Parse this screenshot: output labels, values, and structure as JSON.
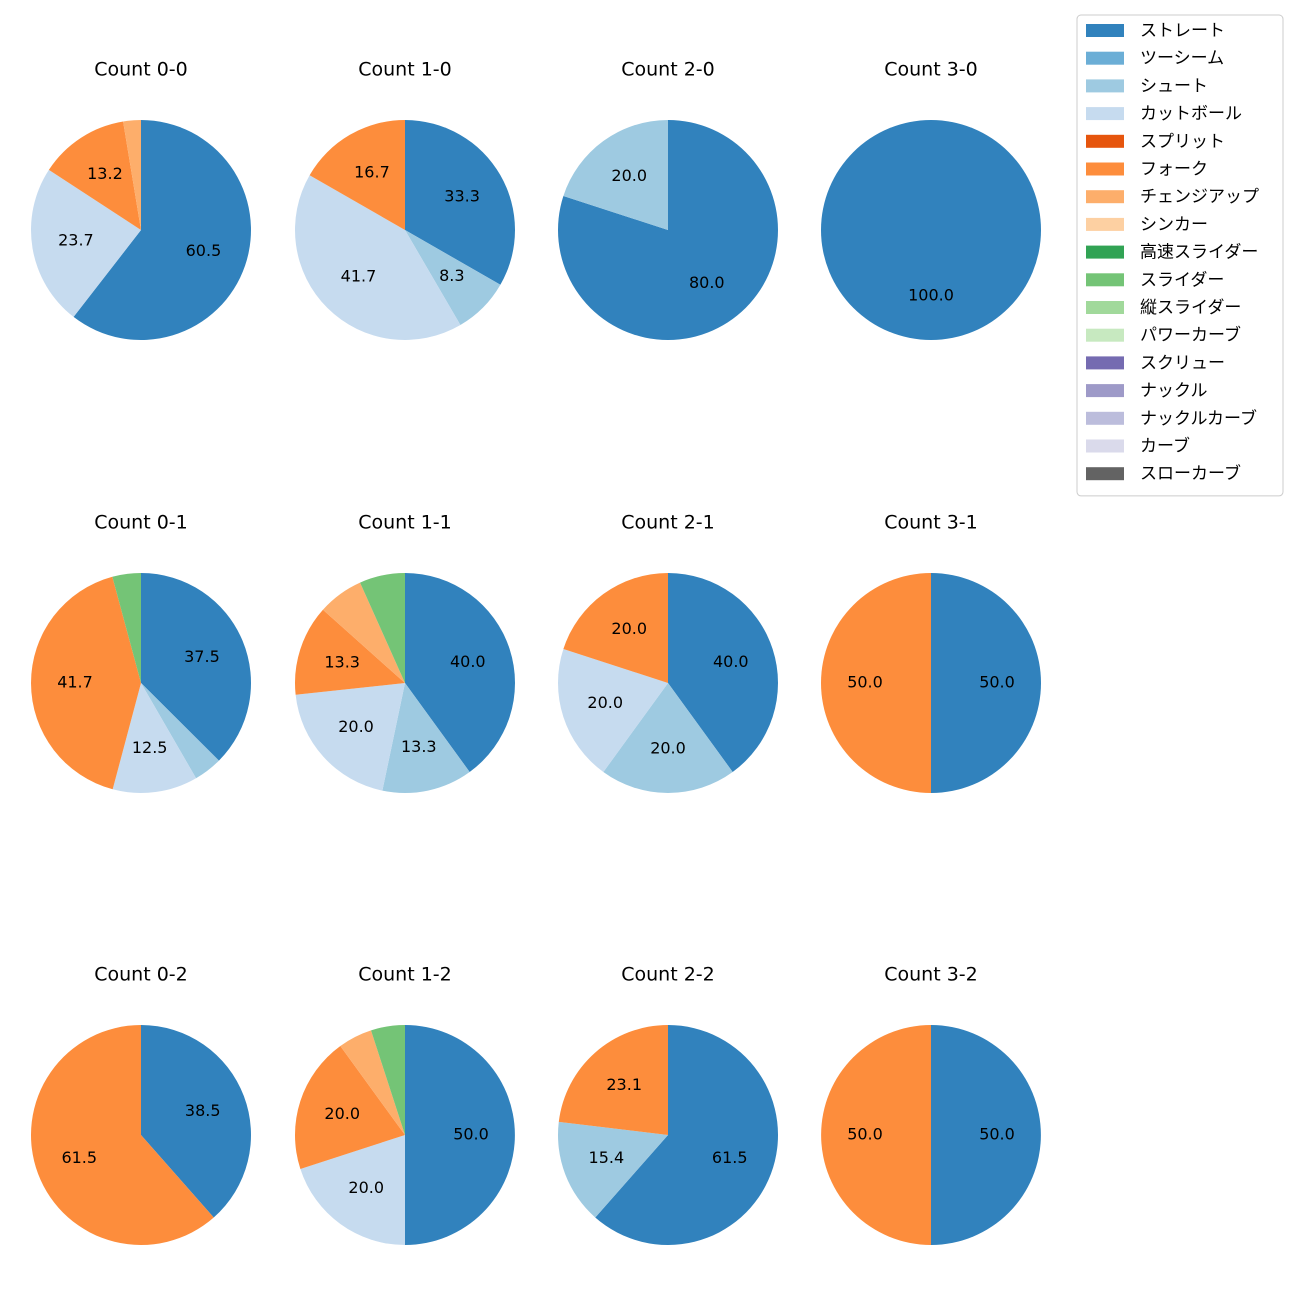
{
  "chart_data": {
    "type": "pie",
    "legend": {
      "placement": "top-right",
      "entries": [
        {
          "name": "ストレート",
          "color": "#3182bd"
        },
        {
          "name": "ツーシーム",
          "color": "#6baed6"
        },
        {
          "name": "シュート",
          "color": "#9ecae1"
        },
        {
          "name": "カットボール",
          "color": "#c6dbef"
        },
        {
          "name": "スプリット",
          "color": "#e6550d"
        },
        {
          "name": "フォーク",
          "color": "#fd8d3c"
        },
        {
          "name": "チェンジアップ",
          "color": "#fdae6b"
        },
        {
          "name": "シンカー",
          "color": "#fdd0a2"
        },
        {
          "name": "高速スライダー",
          "color": "#31a354"
        },
        {
          "name": "スライダー",
          "color": "#74c476"
        },
        {
          "name": "縦スライダー",
          "color": "#a1d99b"
        },
        {
          "name": "パワーカーブ",
          "color": "#c7e9c0"
        },
        {
          "name": "スクリュー",
          "color": "#756bb1"
        },
        {
          "name": "ナックル",
          "color": "#9e9ac8"
        },
        {
          "name": "ナックルカーブ",
          "color": "#bcbddc"
        },
        {
          "name": "カーブ",
          "color": "#dadaeb"
        },
        {
          "name": "スローカーブ",
          "color": "#636363"
        }
      ]
    },
    "pies": [
      {
        "title": "Count 0-0",
        "slices": [
          {
            "pitch": "ストレート",
            "value": 60.5,
            "label": "60.5"
          },
          {
            "pitch": "カットボール",
            "value": 23.7,
            "label": "23.7"
          },
          {
            "pitch": "フォーク",
            "value": 13.2,
            "label": "13.2"
          },
          {
            "pitch": "チェンジアップ",
            "value": 2.6,
            "label": ""
          }
        ]
      },
      {
        "title": "Count 1-0",
        "slices": [
          {
            "pitch": "ストレート",
            "value": 33.3,
            "label": "33.3"
          },
          {
            "pitch": "シュート",
            "value": 8.3,
            "label": "8.3"
          },
          {
            "pitch": "カットボール",
            "value": 41.7,
            "label": "41.7"
          },
          {
            "pitch": "フォーク",
            "value": 16.7,
            "label": "16.7"
          }
        ]
      },
      {
        "title": "Count 2-0",
        "slices": [
          {
            "pitch": "ストレート",
            "value": 80.0,
            "label": "80.0"
          },
          {
            "pitch": "シュート",
            "value": 20.0,
            "label": "20.0"
          }
        ]
      },
      {
        "title": "Count 3-0",
        "slices": [
          {
            "pitch": "ストレート",
            "value": 100.0,
            "label": "100.0"
          }
        ]
      },
      {
        "title": "Count 0-1",
        "slices": [
          {
            "pitch": "ストレート",
            "value": 37.5,
            "label": "37.5"
          },
          {
            "pitch": "シュート",
            "value": 4.2,
            "label": ""
          },
          {
            "pitch": "カットボール",
            "value": 12.5,
            "label": "12.5"
          },
          {
            "pitch": "フォーク",
            "value": 41.7,
            "label": "41.7"
          },
          {
            "pitch": "スライダー",
            "value": 4.2,
            "label": ""
          }
        ]
      },
      {
        "title": "Count 1-1",
        "slices": [
          {
            "pitch": "ストレート",
            "value": 40.0,
            "label": "40.0"
          },
          {
            "pitch": "シュート",
            "value": 13.3,
            "label": "13.3"
          },
          {
            "pitch": "カットボール",
            "value": 20.0,
            "label": "20.0"
          },
          {
            "pitch": "フォーク",
            "value": 13.3,
            "label": "13.3"
          },
          {
            "pitch": "チェンジアップ",
            "value": 6.7,
            "label": ""
          },
          {
            "pitch": "スライダー",
            "value": 6.7,
            "label": ""
          }
        ]
      },
      {
        "title": "Count 2-1",
        "slices": [
          {
            "pitch": "ストレート",
            "value": 40.0,
            "label": "40.0"
          },
          {
            "pitch": "シュート",
            "value": 20.0,
            "label": "20.0"
          },
          {
            "pitch": "カットボール",
            "value": 20.0,
            "label": "20.0"
          },
          {
            "pitch": "フォーク",
            "value": 20.0,
            "label": "20.0"
          }
        ]
      },
      {
        "title": "Count 3-1",
        "slices": [
          {
            "pitch": "ストレート",
            "value": 50.0,
            "label": "50.0"
          },
          {
            "pitch": "フォーク",
            "value": 50.0,
            "label": "50.0"
          }
        ]
      },
      {
        "title": "Count 0-2",
        "slices": [
          {
            "pitch": "ストレート",
            "value": 38.5,
            "label": "38.5"
          },
          {
            "pitch": "フォーク",
            "value": 61.5,
            "label": "61.5"
          }
        ]
      },
      {
        "title": "Count 1-2",
        "slices": [
          {
            "pitch": "ストレート",
            "value": 50.0,
            "label": "50.0"
          },
          {
            "pitch": "カットボール",
            "value": 20.0,
            "label": "20.0"
          },
          {
            "pitch": "フォーク",
            "value": 20.0,
            "label": "20.0"
          },
          {
            "pitch": "チェンジアップ",
            "value": 5.0,
            "label": ""
          },
          {
            "pitch": "スライダー",
            "value": 5.0,
            "label": ""
          }
        ]
      },
      {
        "title": "Count 2-2",
        "slices": [
          {
            "pitch": "ストレート",
            "value": 61.5,
            "label": "61.5"
          },
          {
            "pitch": "シュート",
            "value": 15.4,
            "label": "15.4"
          },
          {
            "pitch": "フォーク",
            "value": 23.1,
            "label": "23.1"
          }
        ]
      },
      {
        "title": "Count 3-2",
        "slices": [
          {
            "pitch": "ストレート",
            "value": 50.0,
            "label": "50.0"
          },
          {
            "pitch": "フォーク",
            "value": 50.0,
            "label": "50.0"
          }
        ]
      }
    ]
  }
}
